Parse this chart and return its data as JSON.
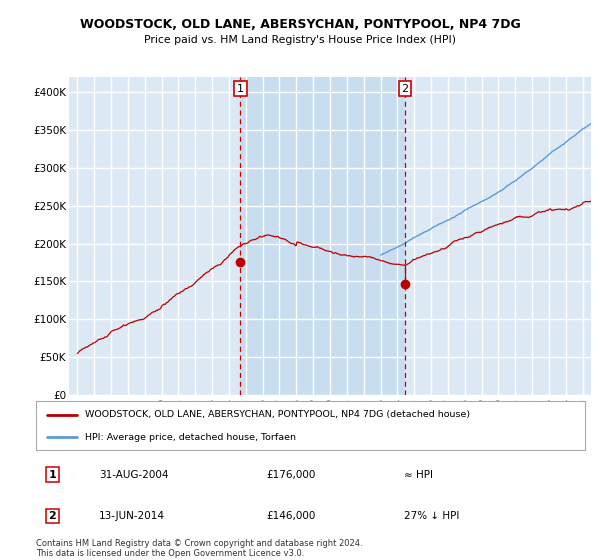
{
  "title": "WOODSTOCK, OLD LANE, ABERSYCHAN, PONTYPOOL, NP4 7DG",
  "subtitle": "Price paid vs. HM Land Registry's House Price Index (HPI)",
  "plot_bg_color": "#dce9f5",
  "shade_color": "#c5ddf0",
  "grid_color": "#ffffff",
  "ylim": [
    0,
    420000
  ],
  "yticks": [
    0,
    50000,
    100000,
    150000,
    200000,
    250000,
    300000,
    350000,
    400000
  ],
  "ytick_labels": [
    "£0",
    "£50K",
    "£100K",
    "£150K",
    "£200K",
    "£250K",
    "£300K",
    "£350K",
    "£400K"
  ],
  "legend_line1": "WOODSTOCK, OLD LANE, ABERSYCHAN, PONTYPOOL, NP4 7DG (detached house)",
  "legend_line2": "HPI: Average price, detached house, Torfaen",
  "marker1_date": "31-AUG-2004",
  "marker1_price": "£176,000",
  "marker1_note": "≈ HPI",
  "marker2_date": "13-JUN-2014",
  "marker2_price": "£146,000",
  "marker2_note": "27% ↓ HPI",
  "footer": "Contains HM Land Registry data © Crown copyright and database right 2024.\nThis data is licensed under the Open Government Licence v3.0.",
  "red_line_color": "#bb0000",
  "blue_line_color": "#5b9bd5",
  "marker_vline_color": "#cc0000",
  "marker1_x": 2004.67,
  "marker2_x": 2014.45,
  "marker1_y": 176000,
  "marker2_y": 146000,
  "xlim_left": 1994.5,
  "xlim_right": 2025.5
}
